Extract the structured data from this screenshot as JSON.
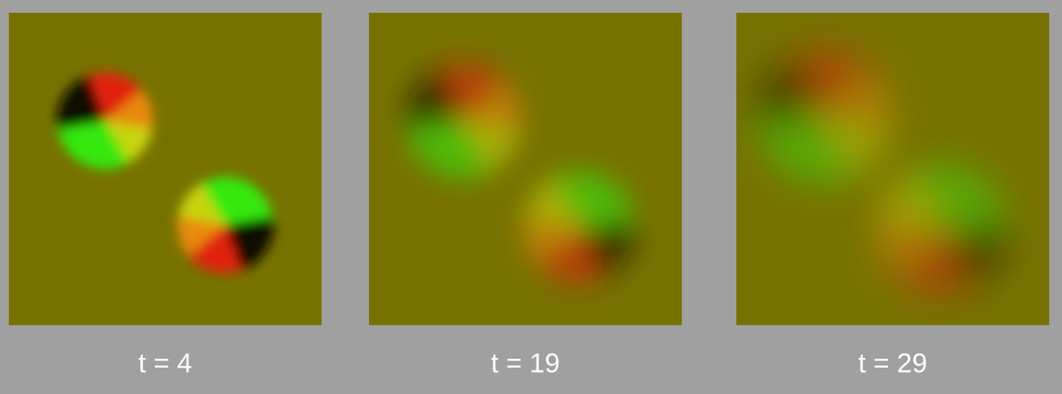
{
  "colors": {
    "page_background": "#a0a0a0",
    "field_background": "#777200",
    "caption_text": "#ffffff",
    "vortex_red": "#e0200a",
    "vortex_green": "#35e80f",
    "vortex_yellow": "#c8d40a",
    "vortex_orange": "#e88a0a",
    "vortex_dark": "#0a0a00"
  },
  "frames": [
    {
      "caption": "t = 4",
      "blur_level": 0.15,
      "contrast": 1.0
    },
    {
      "caption": "t = 19",
      "blur_level": 0.55,
      "contrast": 0.6
    },
    {
      "caption": "t = 29",
      "blur_level": 0.8,
      "contrast": 0.45
    }
  ]
}
